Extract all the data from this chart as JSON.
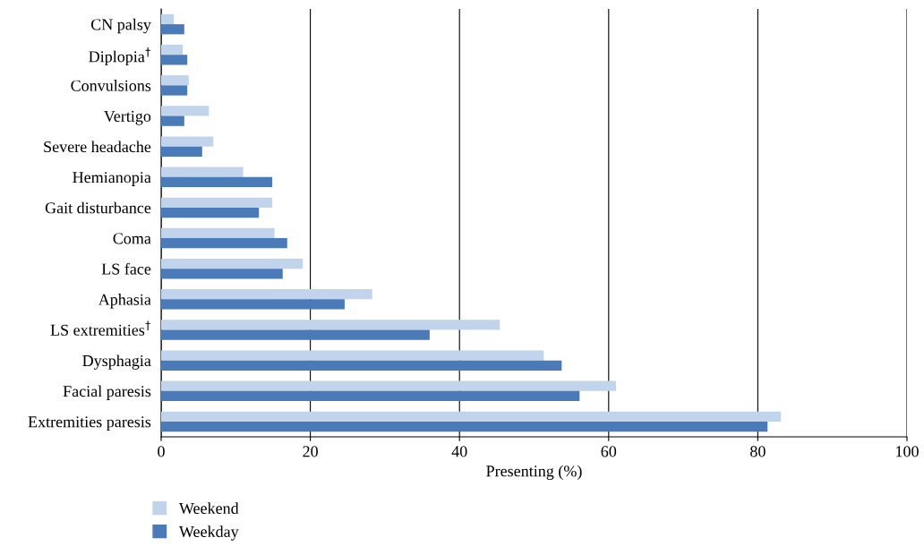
{
  "chart_data": {
    "type": "bar",
    "orientation": "horizontal",
    "xlabel": "Presenting (%)",
    "categories": [
      "CN palsy",
      "Diplopia$^{†}$",
      "Convulsions",
      "Vertigo",
      "Severe headache",
      "Hemianopia",
      "Gait disturbance",
      "Coma",
      "LS face",
      "Aphasia",
      "LS extremities$^{†}$",
      "Dysphagia",
      "Facial paresis",
      "Extremities paresis"
    ],
    "series": [
      {
        "name": "Weekend",
        "color": "#c2d4ec",
        "values": [
          1.7,
          2.9,
          3.7,
          6.4,
          7.0,
          11.0,
          14.9,
          15.2,
          19.0,
          28.3,
          45.4,
          51.3,
          61.0,
          83.1
        ]
      },
      {
        "name": "Weekday",
        "color": "#4a7ab8",
        "values": [
          3.1,
          3.5,
          3.5,
          3.1,
          5.5,
          14.9,
          13.1,
          16.9,
          16.3,
          24.6,
          36.0,
          53.7,
          56.1,
          81.3
        ]
      }
    ],
    "xlim": [
      0,
      100
    ],
    "xticks": [
      0,
      20,
      40,
      60,
      80,
      100
    ],
    "grid": "x",
    "legend": "bottom left"
  }
}
